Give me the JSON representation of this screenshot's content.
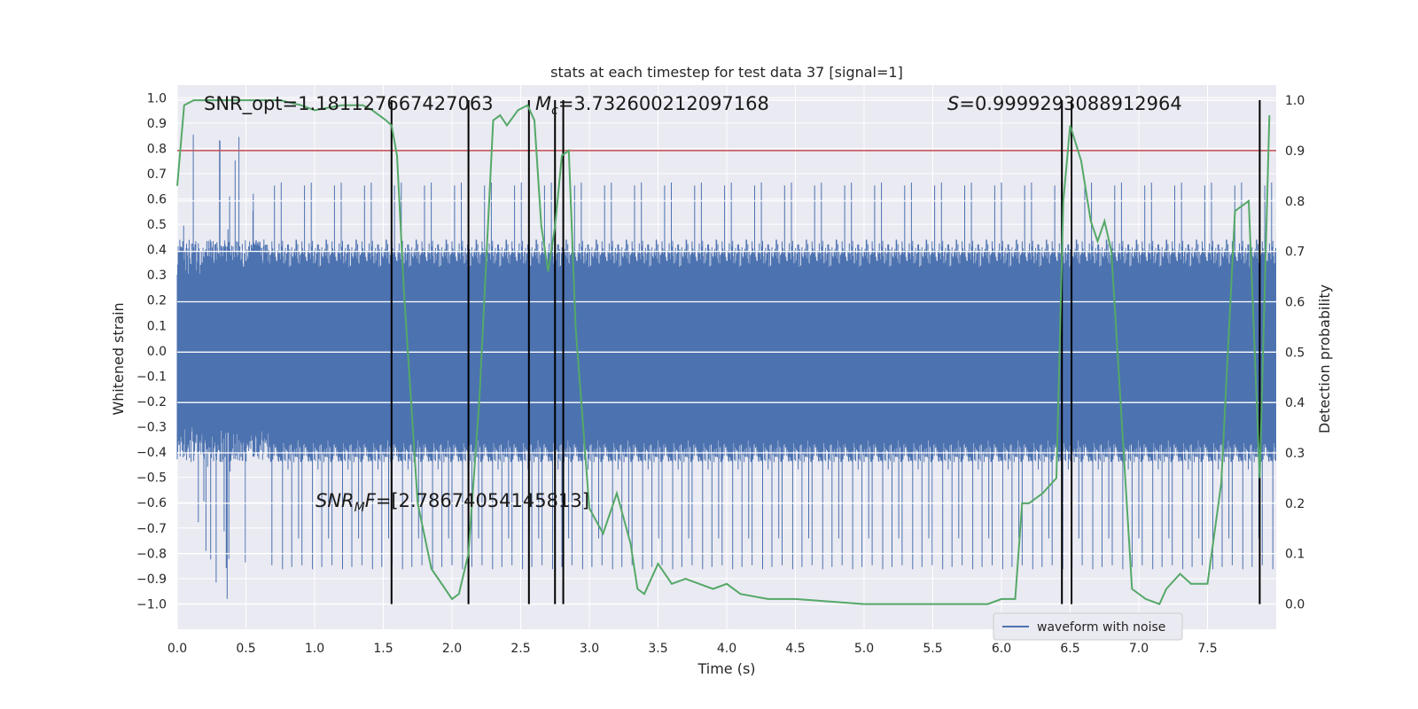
{
  "chart_data": {
    "type": "line",
    "title": "stats at each timestep for test data 37 [signal=1]",
    "xlabel": "Time (s)",
    "ylabel_left": "Whitened strain",
    "ylabel_right": "Detection probability",
    "xlim": [
      0,
      8
    ],
    "ylim_left": [
      -1.1,
      1.05
    ],
    "ylim_right": [
      -0.05,
      1.03
    ],
    "x_ticks": [
      0.0,
      0.5,
      1.0,
      1.5,
      2.0,
      2.5,
      3.0,
      3.5,
      4.0,
      4.5,
      5.0,
      5.5,
      6.0,
      6.5,
      7.0,
      7.5
    ],
    "x_tick_labels": [
      "0.0",
      "0.5",
      "1.0",
      "1.5",
      "2.0",
      "2.5",
      "3.0",
      "3.5",
      "4.0",
      "4.5",
      "5.0",
      "5.5",
      "6.0",
      "6.5",
      "7.0",
      "7.5"
    ],
    "y_left_ticks": [
      1.0,
      0.9,
      0.8,
      0.7,
      0.6,
      0.5,
      0.4,
      0.3,
      0.2,
      0.1,
      0.0,
      -0.1,
      -0.2,
      -0.3,
      -0.4,
      -0.5,
      -0.6,
      -0.7,
      -0.8,
      -0.9,
      -1.0
    ],
    "y_left_tick_labels": [
      "1.0",
      "0.9",
      "0.8",
      "0.7",
      "0.6",
      "0.5",
      "0.4",
      "0.3",
      "0.2",
      "0.1",
      "0.0",
      "−0.1",
      "−0.2",
      "−0.3",
      "−0.4",
      "−0.5",
      "−0.6",
      "−0.7",
      "−0.8",
      "−0.9",
      "−1.0"
    ],
    "y_right_ticks": [
      1.0,
      0.9,
      0.8,
      0.7,
      0.6,
      0.5,
      0.4,
      0.3,
      0.2,
      0.1,
      0.0
    ],
    "y_right_tick_labels": [
      "1.0",
      "0.9",
      "0.8",
      "0.7",
      "0.6",
      "0.5",
      "0.4",
      "0.3",
      "0.2",
      "0.1",
      "0.0"
    ],
    "threshold": 0.9,
    "event_times": [
      1.56,
      2.12,
      2.56,
      2.75,
      2.81,
      6.44,
      6.51,
      7.88
    ],
    "waveform": {
      "name": "waveform with noise",
      "color": "#4c72b0",
      "core_amplitude": 0.4,
      "spike_min": -1.0,
      "spike_max": 0.9
    },
    "detection_probability": {
      "color": "#55a868",
      "x": [
        0.0,
        0.05,
        0.12,
        0.25,
        0.5,
        0.75,
        0.9,
        1.0,
        1.2,
        1.35,
        1.42,
        1.52,
        1.56,
        1.6,
        1.65,
        1.75,
        1.85,
        1.95,
        2.0,
        2.05,
        2.12,
        2.2,
        2.3,
        2.35,
        2.4,
        2.48,
        2.55,
        2.6,
        2.65,
        2.7,
        2.75,
        2.8,
        2.85,
        2.9,
        3.0,
        3.1,
        3.2,
        3.3,
        3.35,
        3.4,
        3.5,
        3.6,
        3.7,
        3.8,
        3.9,
        4.0,
        4.1,
        4.3,
        4.5,
        5.0,
        5.5,
        5.8,
        5.9,
        6.0,
        6.1,
        6.15,
        6.2,
        6.3,
        6.4,
        6.45,
        6.5,
        6.58,
        6.65,
        6.7,
        6.75,
        6.8,
        6.95,
        7.05,
        7.15,
        7.2,
        7.3,
        7.38,
        7.5,
        7.6,
        7.7,
        7.8,
        7.88,
        7.95
      ],
      "y": [
        0.83,
        0.99,
        1.0,
        1.0,
        1.0,
        1.0,
        0.99,
        0.98,
        0.99,
        0.99,
        0.98,
        0.96,
        0.95,
        0.89,
        0.62,
        0.2,
        0.07,
        0.03,
        0.01,
        0.02,
        0.1,
        0.41,
        0.96,
        0.97,
        0.95,
        0.98,
        0.99,
        0.96,
        0.75,
        0.66,
        0.75,
        0.89,
        0.9,
        0.55,
        0.19,
        0.14,
        0.22,
        0.12,
        0.03,
        0.02,
        0.08,
        0.04,
        0.05,
        0.04,
        0.03,
        0.04,
        0.02,
        0.01,
        0.01,
        0.0,
        0.0,
        0.0,
        0.0,
        0.01,
        0.01,
        0.2,
        0.2,
        0.22,
        0.25,
        0.8,
        0.95,
        0.88,
        0.76,
        0.72,
        0.76,
        0.7,
        0.03,
        0.01,
        0.0,
        0.03,
        0.06,
        0.04,
        0.04,
        0.24,
        0.78,
        0.8,
        0.25,
        0.97
      ]
    },
    "threshold_color": "#c44e52",
    "event_color": "#000000",
    "annotations": [
      {
        "text": "SNR_opt=1.181127667427063"
      },
      {
        "sym": "M",
        "sub": "c",
        "text": "=3.732600212097168"
      },
      {
        "sym": "S",
        "text": "=0.9999293088912964"
      },
      {
        "sym": "SNR",
        "sub": "M",
        "mid": "F",
        "text": "=[2.78674054145813]"
      }
    ],
    "legend": {
      "label": "waveform with noise",
      "placement": "lower-right"
    }
  }
}
